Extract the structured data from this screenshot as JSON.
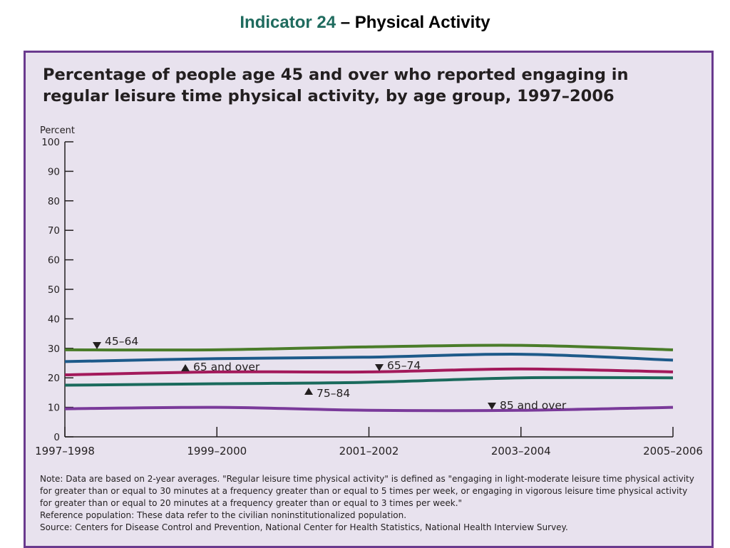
{
  "heading": {
    "indicator": "Indicator 24",
    "topic": " – Physical Activity"
  },
  "colors": {
    "panel_bg": "#e8e2ee",
    "panel_border": "#6a3a8e",
    "indicator_text": "#1f6b5e"
  },
  "chart_data": {
    "type": "line",
    "title": "Percentage of people age 45 and over who reported engaging in regular leisure time physical activity, by age group, 1997–2006",
    "ylabel": "Percent",
    "xlabel": "",
    "ylim": [
      0,
      100
    ],
    "yticks": [
      "0",
      "10",
      "20",
      "30",
      "40",
      "50",
      "60",
      "70",
      "80",
      "90",
      "100"
    ],
    "categories": [
      "1997–1998",
      "1999–2000",
      "2001–2002",
      "2003–2004",
      "2005–2006"
    ],
    "grid": false,
    "series": [
      {
        "name": "45–64",
        "color": "#4a7c2a",
        "values": [
          29.5,
          29.5,
          30.5,
          31.0,
          29.5
        ],
        "label_marker": "down"
      },
      {
        "name": "65 and over",
        "color": "#1d5a8a",
        "values": [
          25.5,
          26.5,
          27.0,
          28.0,
          26.0
        ],
        "label_marker": "up"
      },
      {
        "name": "65–74",
        "color": "#a3195b",
        "values": [
          21.0,
          22.0,
          22.0,
          23.0,
          22.0
        ],
        "label_marker": "down"
      },
      {
        "name": "75–84",
        "color": "#1a6a5c",
        "values": [
          17.5,
          18.0,
          18.5,
          20.0,
          20.0
        ],
        "label_marker": "up"
      },
      {
        "name": "85 and over",
        "color": "#7a3a9a",
        "values": [
          9.5,
          10.0,
          9.0,
          9.0,
          10.0
        ],
        "label_marker": "down"
      }
    ]
  },
  "notes": [
    "Note:  Data are based on 2-year averages. \"Regular leisure time physical activity\" is defined as \"engaging in light-moderate leisure time physical activity for greater than or equal to 30 minutes at a frequency greater than or equal to 5 times per week, or engaging in vigorous leisure time physical activity for greater than or equal to 20 minutes at a frequency greater than or equal to 3 times per week.\"",
    "Reference population: These data refer to the civilian noninstitutionalized population.",
    "Source:  Centers for Disease Control and Prevention, National Center for Health Statistics, National Health Interview Survey."
  ]
}
